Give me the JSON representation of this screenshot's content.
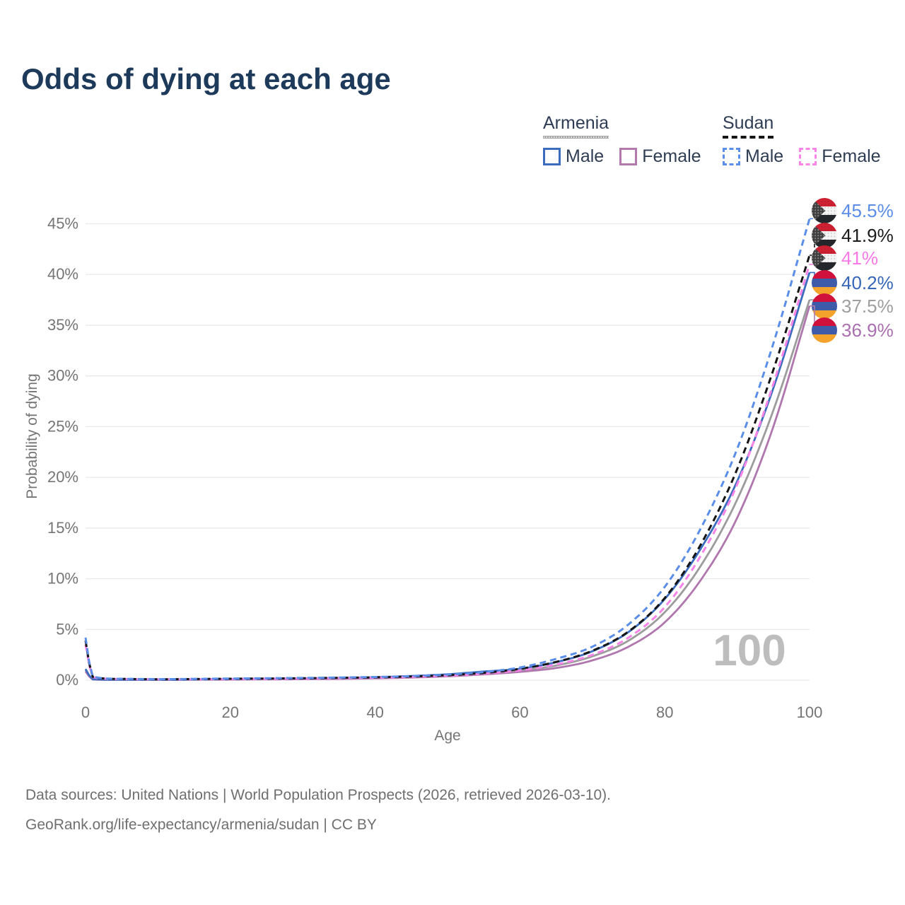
{
  "title": "Odds of dying at each age",
  "legend": {
    "groups": [
      {
        "country": "Armenia",
        "style": "solid",
        "line_color": "#a6a6a6",
        "items": [
          {
            "label": "Male",
            "color": "#3b6cbe"
          },
          {
            "label": "Female",
            "color": "#b279ae"
          }
        ]
      },
      {
        "country": "Sudan",
        "style": "dashed",
        "line_color": "#151515",
        "items": [
          {
            "label": "Male",
            "color": "#5b8ee8"
          },
          {
            "label": "Female",
            "color": "#f884e8"
          }
        ]
      }
    ]
  },
  "chart_data": {
    "type": "line",
    "title": "Odds of dying at each age",
    "xlabel": "Age",
    "ylabel": "Probability of dying",
    "xlim": [
      0,
      100
    ],
    "ylim": [
      0,
      45
    ],
    "grid": "horizontal",
    "legend_position": "top-right",
    "watermark": "100",
    "xticks": [
      "0",
      "20",
      "40",
      "60",
      "80",
      "100"
    ],
    "yticks": [
      "0%",
      "5%",
      "10%",
      "15%",
      "20%",
      "25%",
      "30%",
      "35%",
      "40%",
      "45%"
    ],
    "ages": [
      0,
      1,
      5,
      10,
      15,
      20,
      25,
      30,
      35,
      40,
      45,
      50,
      55,
      60,
      65,
      70,
      75,
      80,
      85,
      90,
      95,
      100
    ],
    "series": [
      {
        "name": "Sudan Male",
        "country": "Sudan",
        "sex": "male",
        "line_style": "dashed",
        "color": "#5b8ee8",
        "label_color": "#5a8ce8",
        "flag": "sudan",
        "end_label": "45.5%",
        "values": [
          4.2,
          0.35,
          0.13,
          0.1,
          0.12,
          0.16,
          0.19,
          0.22,
          0.26,
          0.31,
          0.4,
          0.55,
          0.8,
          1.25,
          2.1,
          3.3,
          5.5,
          9.2,
          15.0,
          22.8,
          33.2,
          45.5
        ]
      },
      {
        "name": "Sudan Both sexes",
        "country": "Sudan",
        "sex": "both",
        "line_style": "dashed",
        "color": "#151515",
        "label_color": "#1b1b1b",
        "flag": "sudan",
        "end_label": "41.9%",
        "values": [
          3.9,
          0.32,
          0.12,
          0.09,
          0.11,
          0.14,
          0.16,
          0.19,
          0.23,
          0.28,
          0.36,
          0.49,
          0.72,
          1.12,
          1.8,
          2.9,
          4.8,
          8.1,
          13.4,
          20.8,
          30.6,
          41.9
        ]
      },
      {
        "name": "Sudan Female",
        "country": "Sudan",
        "sex": "female",
        "line_style": "dashed",
        "color": "#f884e8",
        "label_color": "#f87ae6",
        "flag": "sudan",
        "end_label": "41%",
        "values": [
          3.5,
          0.29,
          0.11,
          0.08,
          0.09,
          0.11,
          0.13,
          0.16,
          0.2,
          0.25,
          0.32,
          0.44,
          0.64,
          0.97,
          1.55,
          2.5,
          4.2,
          7.2,
          12.3,
          19.3,
          29.2,
          41.0
        ]
      },
      {
        "name": "Armenia Male",
        "country": "Armenia",
        "sex": "male",
        "line_style": "solid",
        "color": "#3b6cbe",
        "label_color": "#3567b6",
        "flag": "armenia",
        "end_label": "40.2%",
        "values": [
          1.1,
          0.09,
          0.04,
          0.04,
          0.07,
          0.11,
          0.14,
          0.17,
          0.22,
          0.29,
          0.41,
          0.58,
          0.85,
          1.12,
          1.78,
          2.85,
          4.75,
          8.0,
          13.0,
          19.6,
          28.8,
          40.2
        ]
      },
      {
        "name": "Armenia Both sexes",
        "country": "Armenia",
        "sex": "both",
        "line_style": "solid",
        "color": "#9c9c9c",
        "label_color": "#9e9e9e",
        "flag": "armenia",
        "end_label": "37.5%",
        "values": [
          1.0,
          0.08,
          0.035,
          0.035,
          0.06,
          0.09,
          0.11,
          0.14,
          0.18,
          0.24,
          0.34,
          0.49,
          0.72,
          0.95,
          1.45,
          2.35,
          3.9,
          6.7,
          11.3,
          17.8,
          26.6,
          37.5
        ]
      },
      {
        "name": "Armenia Female",
        "country": "Armenia",
        "sex": "female",
        "line_style": "solid",
        "color": "#b077ae",
        "label_color": "#aa6fae",
        "flag": "armenia",
        "end_label": "36.9%",
        "values": [
          0.85,
          0.07,
          0.03,
          0.03,
          0.05,
          0.06,
          0.08,
          0.1,
          0.13,
          0.18,
          0.26,
          0.38,
          0.57,
          0.82,
          1.2,
          1.95,
          3.3,
          5.7,
          9.9,
          16.0,
          25.0,
          36.9
        ]
      }
    ],
    "flag_colors": {
      "armenia": {
        "red": "#d0113b",
        "blue": "#3e5ba9",
        "orange": "#f3a22c"
      },
      "sudan": {
        "red": "#cf2031",
        "white": "#f4f4f4",
        "black": "#23272b",
        "triangle": "#3f3f3f"
      }
    }
  },
  "footer": {
    "line1": "Data sources: United Nations | World Population Prospects (2026, retrieved 2026-03-10).",
    "line2": "GeoRank.org/life-expectancy/armenia/sudan | CC BY"
  }
}
